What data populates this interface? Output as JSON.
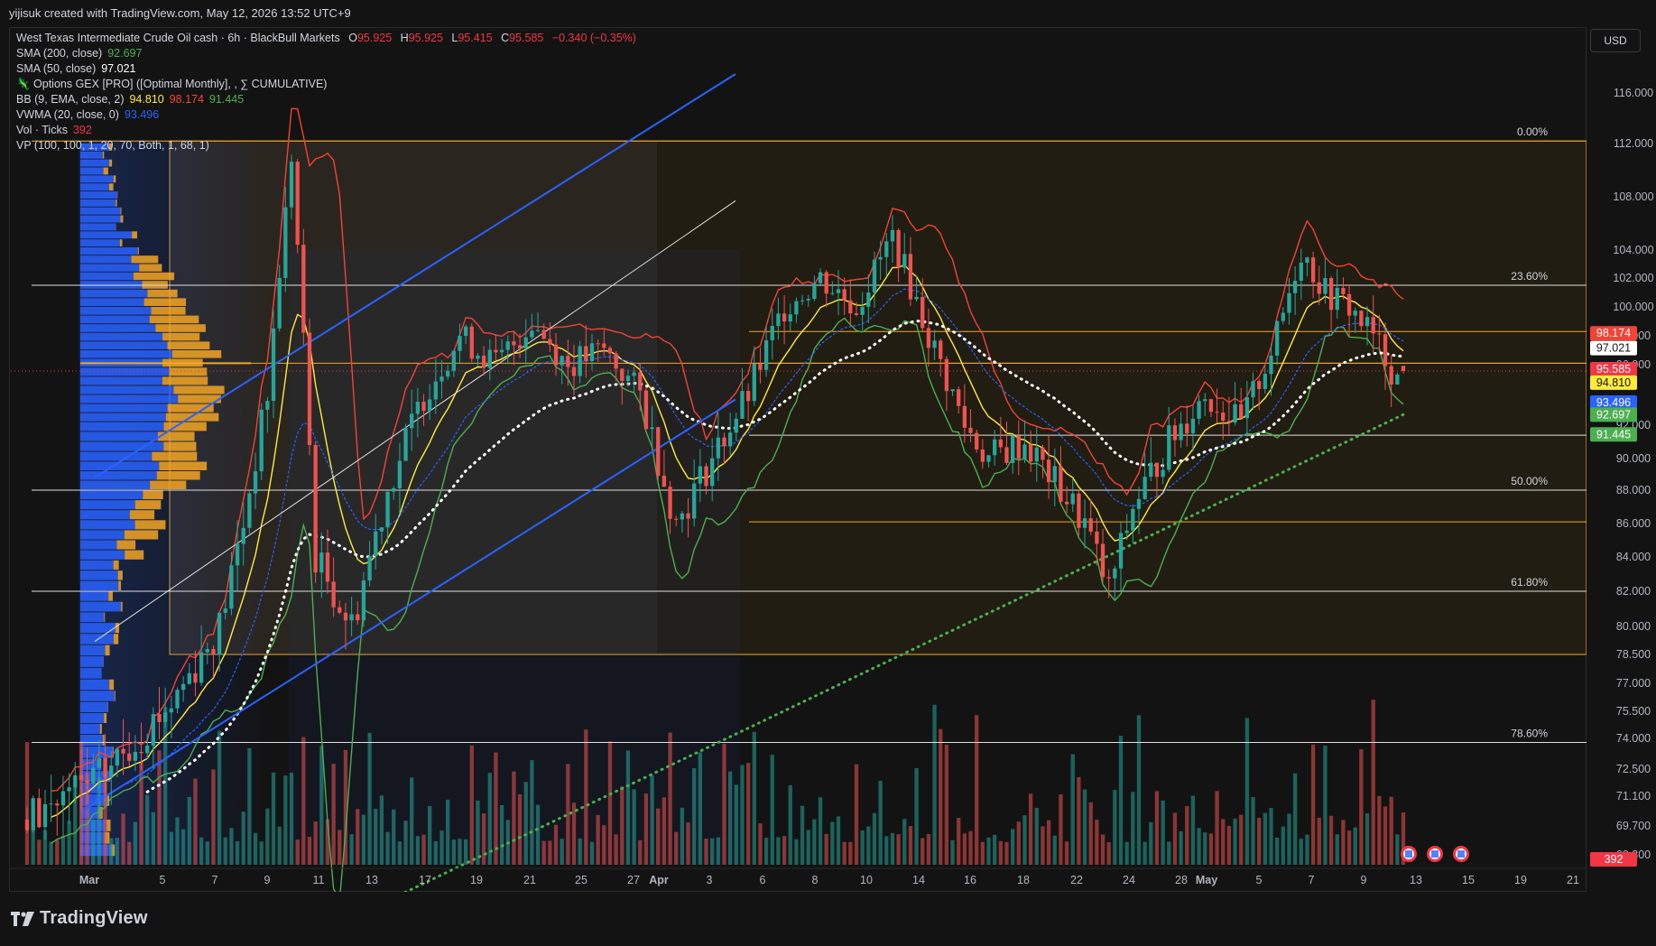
{
  "header": {
    "credit": "yijisuk created with TradingView.com, May 12, 2026 13:52 UTC+9"
  },
  "currency": "USD",
  "footer": {
    "brand": "TradingView"
  },
  "legend": {
    "symbol_line": "West Texas Intermediate Crude Oil cash · 6h · BlackBull Markets",
    "ohlc": {
      "o_label": "O",
      "o": "95.925",
      "h_label": "H",
      "h": "95.925",
      "l_label": "L",
      "l": "95.415",
      "c_label": "C",
      "c": "95.585",
      "chg": "−0.340 (−0.35%)"
    },
    "indicators": [
      {
        "label": "SMA (200, close)",
        "values": [
          "92.697"
        ],
        "colors": [
          "#4caf50"
        ]
      },
      {
        "label": "SMA (50, close)",
        "values": [
          "97.021"
        ],
        "colors": [
          "#ffffff"
        ]
      },
      {
        "label": "🦎 Options GEX [PRO] ([Optimal Monthly], , ∑ CUMULATIVE)",
        "values": [],
        "colors": []
      },
      {
        "label": "BB (9, EMA, close, 2)",
        "values": [
          "94.810",
          "98.174",
          "91.445"
        ],
        "colors": [
          "#ffeb3b",
          "#f44336",
          "#4caf50"
        ]
      },
      {
        "label": "VWMA (20, close, 0)",
        "values": [
          "93.496"
        ],
        "colors": [
          "#2962ff"
        ]
      },
      {
        "label": "Vol · Ticks",
        "values": [
          "392"
        ],
        "colors": [
          "#f23645"
        ]
      },
      {
        "label": "VP (100, 100, 1, 20, 70, Both, 1, 68, 1)",
        "values": [],
        "colors": []
      }
    ]
  },
  "colors": {
    "up": "#26a69a",
    "down": "#ef5350",
    "bb_mid": "#ffeb3b",
    "bb_upper": "#f44336",
    "bb_lower": "#4caf50",
    "vwma": "#2962ff",
    "sma50": "#ffffff",
    "sma200": "#4caf50",
    "channel": "#2962ff",
    "fib": "#f5a623",
    "vp_blue": "#2962ff",
    "vp_orange": "#f5a623"
  },
  "chart_data": {
    "type": "candlestick",
    "y_axis": {
      "ticks": [
        "116.000",
        "112.000",
        "108.000",
        "104.000",
        "102.000",
        "100.000",
        "98.000",
        "96.000",
        "92.000",
        "90.000",
        "88.000",
        "86.000",
        "84.000",
        "82.000",
        "80.000",
        "78.500",
        "77.000",
        "75.500",
        "74.000",
        "72.500",
        "71.100",
        "69.700",
        "68.300"
      ],
      "price_labels": [
        {
          "text": "98.174",
          "price": 98.174,
          "bg": "#f44336",
          "fg": "#ffffff"
        },
        {
          "text": "97.021",
          "price": 97.021,
          "bg": "#ffffff",
          "fg": "#131313"
        },
        {
          "text": "95.585",
          "price": 95.585,
          "bg": "#f23645",
          "fg": "#ffffff"
        },
        {
          "text": "94.810",
          "price": 94.81,
          "bg": "#ffeb3b",
          "fg": "#131313"
        },
        {
          "text": "93.496",
          "price": 93.496,
          "bg": "#2962ff",
          "fg": "#ffffff"
        },
        {
          "text": "92.697",
          "price": 92.697,
          "bg": "#4caf50",
          "fg": "#ffffff"
        },
        {
          "text": "91.445",
          "price": 91.445,
          "bg": "#4caf50",
          "fg": "#ffffff"
        }
      ],
      "volume_label": "392"
    },
    "x_axis": {
      "ticks": [
        "Mar",
        "5",
        "7",
        "9",
        "11",
        "13",
        "17",
        "19",
        "21",
        "25",
        "27",
        "Apr",
        "3",
        "6",
        "8",
        "10",
        "14",
        "16",
        "18",
        "22",
        "24",
        "28",
        "May",
        "5",
        "7",
        "9",
        "13",
        "15",
        "19",
        "21"
      ],
      "bold": [
        "Mar",
        "Apr",
        "May"
      ]
    },
    "fib_levels": [
      {
        "label": "0.00%",
        "price": 112.2
      },
      {
        "label": "23.60%",
        "price": 101.5
      },
      {
        "label": "50.00%",
        "price": 88.0
      },
      {
        "label": "61.80%",
        "price": 82.0
      },
      {
        "label": "78.60%",
        "price": 73.8
      }
    ],
    "horizontal_levels": [
      98.3,
      96.1,
      91.4,
      86.1
    ],
    "last_close": 95.585,
    "event_flags": [
      "us-flag",
      "us-flag",
      "us-flag"
    ]
  }
}
